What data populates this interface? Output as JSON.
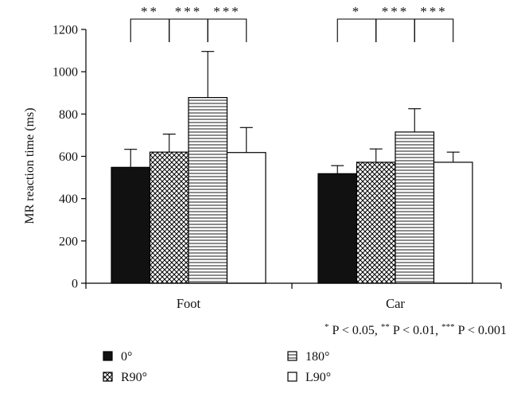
{
  "chart_data": {
    "type": "bar",
    "ylabel": "MR reaction time (ms)",
    "ylim": [
      0,
      1200
    ],
    "yticks": [
      0,
      200,
      400,
      600,
      800,
      1000,
      1200
    ],
    "categories": [
      "Foot",
      "Car"
    ],
    "series": [
      {
        "name": "0°",
        "pattern": "solid",
        "values": [
          548,
          518
        ],
        "errors": [
          85,
          38
        ]
      },
      {
        "name": "R90°",
        "pattern": "crosshatch",
        "values": [
          620,
          572
        ],
        "errors": [
          85,
          63
        ]
      },
      {
        "name": "180°",
        "pattern": "horizontal-lines",
        "values": [
          878,
          715
        ],
        "errors": [
          218,
          110
        ]
      },
      {
        "name": "L90°",
        "pattern": "open",
        "values": [
          618,
          572
        ],
        "errors": [
          118,
          48
        ]
      }
    ],
    "significance": [
      {
        "category": 0,
        "from": 0,
        "to": 1,
        "label": "**"
      },
      {
        "category": 0,
        "from": 1,
        "to": 2,
        "label": "***"
      },
      {
        "category": 0,
        "from": 2,
        "to": 3,
        "label": "***"
      },
      {
        "category": 1,
        "from": 0,
        "to": 1,
        "label": "*"
      },
      {
        "category": 1,
        "from": 1,
        "to": 2,
        "label": "***"
      },
      {
        "category": 1,
        "from": 2,
        "to": 3,
        "label": "***"
      }
    ],
    "footnote_parts": [
      {
        "sup": "*",
        "text": " P < 0.05, "
      },
      {
        "sup": "**",
        "text": " P < 0.01, "
      },
      {
        "sup": "***",
        "text": " P < 0.001"
      }
    ],
    "legend_position": "bottom-left",
    "grid": false,
    "colors": {
      "solid": "#111111",
      "line": "#000000",
      "pattern_fill": "#ffffff"
    }
  }
}
